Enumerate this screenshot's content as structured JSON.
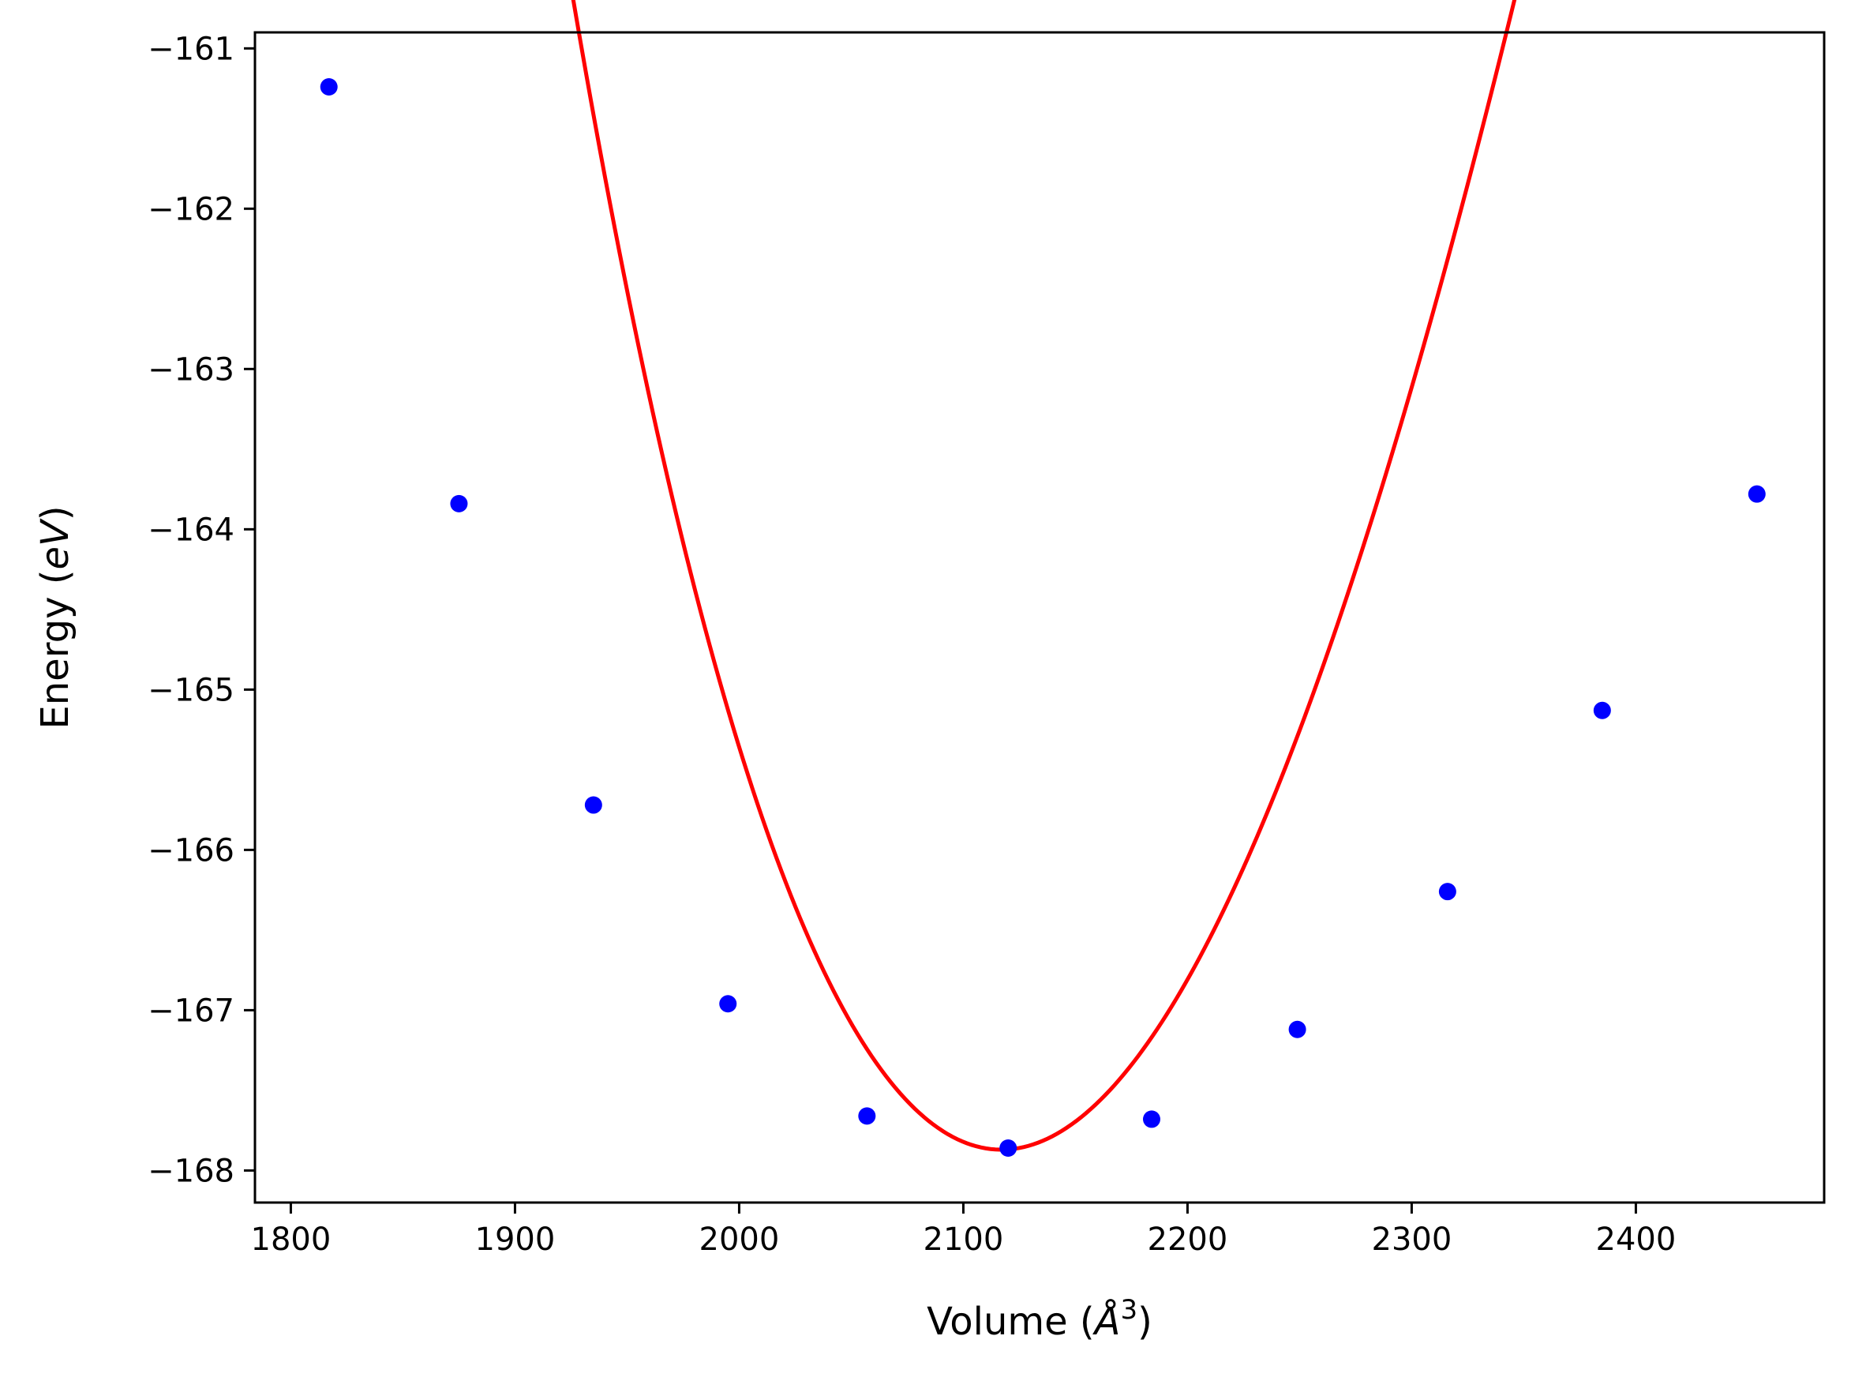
{
  "chart_data": {
    "type": "scatter",
    "title": "",
    "xlabel": {
      "prefix": "Volume (",
      "math": "Å",
      "sup": "3",
      "suffix": ")"
    },
    "ylabel": {
      "prefix": "Energy (",
      "math": "eV",
      "suffix": ")"
    },
    "xlim": [
      1784,
      2484
    ],
    "ylim": [
      -168.2,
      -160.9
    ],
    "xticks": [
      1800,
      1900,
      2000,
      2100,
      2200,
      2300,
      2400
    ],
    "xtick_labels": [
      "1800",
      "1900",
      "2000",
      "2100",
      "2200",
      "2300",
      "2400"
    ],
    "yticks": [
      -161,
      -162,
      -163,
      -164,
      -165,
      -166,
      -167,
      -168
    ],
    "ytick_labels": [
      "−161",
      "−162",
      "−163",
      "−164",
      "−165",
      "−166",
      "−167",
      "−168"
    ],
    "grid": false,
    "legend": "none",
    "series": [
      {
        "kind": "points",
        "color": "#0000ff",
        "x": [
          1817,
          1875,
          1935,
          1995,
          2057,
          2120,
          2184,
          2249,
          2316,
          2385,
          2454
        ],
        "y": [
          -161.24,
          -163.84,
          -165.72,
          -166.96,
          -167.66,
          -167.86,
          -167.68,
          -167.12,
          -166.26,
          -165.13,
          -163.78
        ]
      },
      {
        "kind": "fit-curve",
        "color": "#ff0000",
        "model": "birch-murnaghan",
        "E0": -167.87,
        "V0": 2117,
        "B0": 0.7,
        "B0p": 4.5
      }
    ]
  }
}
